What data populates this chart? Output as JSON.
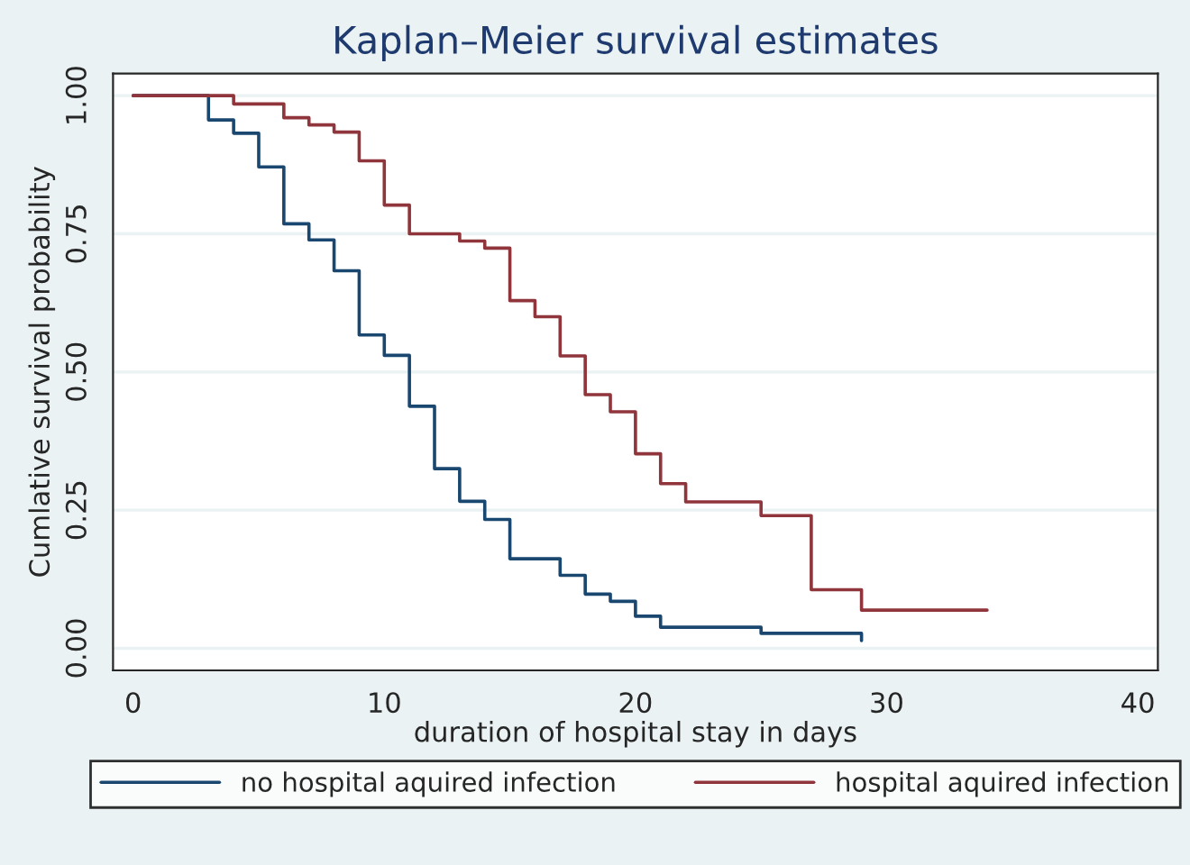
{
  "chart_data": {
    "type": "step",
    "title": "Kaplan–Meier survival estimates",
    "xlabel": "duration of hospital stay in days",
    "ylabel": "Cumlative survival probability",
    "series": [
      {
        "name": "no hospital aquired infection",
        "color": "#1a476f",
        "x": [
          0,
          3,
          4,
          5,
          6,
          7,
          8,
          9,
          10,
          11,
          12,
          13,
          14,
          15,
          17,
          18,
          19,
          20,
          21,
          25,
          29
        ],
        "values": [
          1.0,
          0.956,
          0.932,
          0.871,
          0.768,
          0.739,
          0.683,
          0.567,
          0.53,
          0.438,
          0.325,
          0.266,
          0.233,
          0.162,
          0.132,
          0.098,
          0.085,
          0.058,
          0.038,
          0.027,
          0.014
        ]
      },
      {
        "name": "hospital aquired infection",
        "color": "#90353b",
        "x": [
          0,
          4,
          6,
          7,
          8,
          9,
          10,
          11,
          13,
          14,
          15,
          16,
          17,
          18,
          19,
          20,
          21,
          22,
          25,
          27,
          29,
          34
        ],
        "values": [
          1.0,
          0.985,
          0.96,
          0.947,
          0.934,
          0.882,
          0.802,
          0.75,
          0.737,
          0.724,
          0.629,
          0.6,
          0.529,
          0.459,
          0.428,
          0.352,
          0.298,
          0.265,
          0.24,
          0.106,
          0.069,
          0.069
        ]
      }
    ],
    "xlim": [
      -0.8,
      40.8
    ],
    "xticks": [
      0,
      10,
      20,
      30,
      40
    ],
    "ylim": [
      -0.04,
      1.04
    ],
    "yticks": [
      {
        "value": 0,
        "label": "0.00"
      },
      {
        "value": 0.25,
        "label": "0.25"
      },
      {
        "value": 0.5,
        "label": "0.50"
      },
      {
        "value": 0.75,
        "label": "0.75"
      },
      {
        "value": 1,
        "label": "1.00"
      }
    ],
    "grid": "y",
    "legend": "bottom",
    "line_style": "solid",
    "marker": "none"
  }
}
